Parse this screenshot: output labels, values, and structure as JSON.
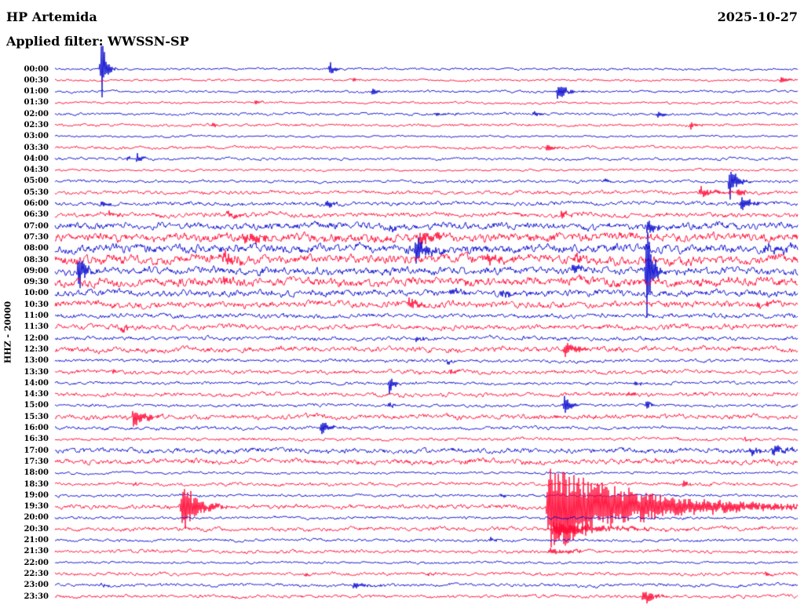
{
  "header": {
    "station": "HP Artemida",
    "date": "2025-10-27",
    "filter_label": "Applied filter: WWSSN-SP"
  },
  "axis": {
    "left_label": "HHZ - 20000"
  },
  "chart_data": {
    "type": "helicorder",
    "title": "HP Artemida 2025-10-27 HHZ helicorder",
    "station": "HP Artemida",
    "channel": "HHZ",
    "scale": 20000,
    "date": "2025-10-27",
    "filter": "WWSSN-SP",
    "minutes_per_row": 30,
    "colors": {
      "blue": "#0000cd",
      "red": "#ff0030"
    },
    "rows": [
      {
        "label": "00:00",
        "color": "blue",
        "noise": 1.0,
        "events": [
          {
            "x": 0.063,
            "amp": 52,
            "decay": 5
          },
          {
            "x": 0.37,
            "amp": 9,
            "decay": 6
          }
        ]
      },
      {
        "label": "00:30",
        "color": "red",
        "noise": 1.0,
        "events": [
          {
            "x": 0.402,
            "amp": 3,
            "decay": 5
          },
          {
            "x": 0.978,
            "amp": 5,
            "decay": 8
          }
        ]
      },
      {
        "label": "01:00",
        "color": "blue",
        "noise": 1.1,
        "events": [
          {
            "x": 0.428,
            "amp": 5,
            "decay": 6
          },
          {
            "x": 0.677,
            "amp": 13,
            "decay": 10
          }
        ]
      },
      {
        "label": "01:30",
        "color": "red",
        "noise": 1.0,
        "events": [
          {
            "x": 0.27,
            "amp": 4,
            "decay": 5
          }
        ]
      },
      {
        "label": "02:00",
        "color": "blue",
        "noise": 1.2,
        "events": [
          {
            "x": 0.513,
            "amp": 3,
            "decay": 14
          },
          {
            "x": 0.645,
            "amp": 4,
            "decay": 6
          },
          {
            "x": 0.812,
            "amp": 5,
            "decay": 6
          }
        ]
      },
      {
        "label": "02:30",
        "color": "red",
        "noise": 1.2,
        "events": [
          {
            "x": 0.211,
            "amp": 4,
            "decay": 6
          },
          {
            "x": 0.856,
            "amp": 5,
            "decay": 7
          }
        ]
      },
      {
        "label": "03:00",
        "color": "blue",
        "noise": 0.9,
        "events": []
      },
      {
        "label": "03:30",
        "color": "red",
        "noise": 1.3,
        "events": [
          {
            "x": 0.663,
            "amp": 7,
            "decay": 8
          }
        ]
      },
      {
        "label": "04:00",
        "color": "blue",
        "noise": 1.2,
        "events": [
          {
            "x": 0.098,
            "amp": 4,
            "decay": 4
          },
          {
            "x": 0.111,
            "amp": 8,
            "decay": 5
          }
        ]
      },
      {
        "label": "04:30",
        "color": "red",
        "noise": 1.0,
        "events": []
      },
      {
        "label": "05:00",
        "color": "blue",
        "noise": 1.3,
        "events": [
          {
            "x": 0.74,
            "amp": 3,
            "decay": 8
          },
          {
            "x": 0.909,
            "amp": 28,
            "decay": 7
          }
        ]
      },
      {
        "label": "05:30",
        "color": "red",
        "noise": 1.6,
        "events": [
          {
            "x": 0.869,
            "amp": 7,
            "decay": 18
          },
          {
            "x": 0.92,
            "amp": 6,
            "decay": 10
          }
        ]
      },
      {
        "label": "06:00",
        "color": "blue",
        "noise": 1.8,
        "events": [
          {
            "x": 0.063,
            "amp": 4,
            "decay": 8
          },
          {
            "x": 0.365,
            "amp": 6,
            "decay": 10
          },
          {
            "x": 0.925,
            "amp": 11,
            "decay": 10
          }
        ]
      },
      {
        "label": "06:30",
        "color": "red",
        "noise": 2.2,
        "events": [
          {
            "x": 0.074,
            "amp": 5,
            "decay": 8
          },
          {
            "x": 0.233,
            "amp": 4,
            "decay": 16
          },
          {
            "x": 0.682,
            "amp": 6,
            "decay": 8
          }
        ]
      },
      {
        "label": "07:00",
        "color": "blue",
        "noise": 3.2,
        "events": [
          {
            "x": 0.452,
            "amp": 6,
            "decay": 8
          },
          {
            "x": 0.798,
            "amp": 10,
            "decay": 8
          }
        ]
      },
      {
        "label": "07:30",
        "color": "red",
        "noise": 4.0,
        "events": [
          {
            "x": 0.254,
            "amp": 8,
            "decay": 20
          },
          {
            "x": 0.492,
            "amp": 12,
            "decay": 18
          }
        ]
      },
      {
        "label": "08:00",
        "color": "blue",
        "noise": 3.8,
        "events": [
          {
            "x": 0.486,
            "amp": 22,
            "decay": 12
          },
          {
            "x": 0.957,
            "amp": 6,
            "decay": 24
          }
        ]
      },
      {
        "label": "08:30",
        "color": "red",
        "noise": 4.2,
        "events": [
          {
            "x": 0.227,
            "amp": 8,
            "decay": 13
          },
          {
            "x": 0.582,
            "amp": 6,
            "decay": 16
          },
          {
            "x": 0.698,
            "amp": 6,
            "decay": 10
          }
        ]
      },
      {
        "label": "09:00",
        "color": "blue",
        "noise": 3.5,
        "events": [
          {
            "x": 0.032,
            "amp": 26,
            "decay": 7
          },
          {
            "x": 0.698,
            "amp": 8,
            "decay": 8
          },
          {
            "x": 0.797,
            "amp": 78,
            "decay": 6
          }
        ]
      },
      {
        "label": "09:30",
        "color": "red",
        "noise": 4.0,
        "events": [
          {
            "x": 0.227,
            "amp": 6,
            "decay": 10
          }
        ]
      },
      {
        "label": "10:00",
        "color": "blue",
        "noise": 3.0,
        "events": [
          {
            "x": 0.534,
            "amp": 5,
            "decay": 8
          },
          {
            "x": 0.602,
            "amp": 6,
            "decay": 12
          }
        ]
      },
      {
        "label": "10:30",
        "color": "red",
        "noise": 3.0,
        "events": [
          {
            "x": 0.476,
            "amp": 7,
            "decay": 15
          },
          {
            "x": 0.946,
            "amp": 4,
            "decay": 16
          }
        ]
      },
      {
        "label": "11:00",
        "color": "blue",
        "noise": 2.0,
        "events": [
          {
            "x": 0.307,
            "amp": 3,
            "decay": 6
          }
        ]
      },
      {
        "label": "11:30",
        "color": "red",
        "noise": 2.4,
        "events": [
          {
            "x": 0.09,
            "amp": 5,
            "decay": 7
          }
        ]
      },
      {
        "label": "12:00",
        "color": "blue",
        "noise": 1.8,
        "events": [
          {
            "x": 0.486,
            "amp": 5,
            "decay": 8
          }
        ]
      },
      {
        "label": "12:30",
        "color": "red",
        "noise": 2.4,
        "events": [
          {
            "x": 0.687,
            "amp": 9,
            "decay": 15
          }
        ]
      },
      {
        "label": "13:00",
        "color": "blue",
        "noise": 1.5,
        "events": [
          {
            "x": 0.529,
            "amp": 4,
            "decay": 6
          }
        ]
      },
      {
        "label": "13:30",
        "color": "red",
        "noise": 1.8,
        "events": [
          {
            "x": 0.079,
            "amp": 4,
            "decay": 6
          },
          {
            "x": 0.534,
            "amp": 4,
            "decay": 8
          }
        ]
      },
      {
        "label": "14:00",
        "color": "blue",
        "noise": 1.4,
        "events": [
          {
            "x": 0.451,
            "amp": 16,
            "decay": 5
          },
          {
            "x": 0.782,
            "amp": 4,
            "decay": 5
          }
        ]
      },
      {
        "label": "14:30",
        "color": "red",
        "noise": 1.8,
        "events": [
          {
            "x": 0.772,
            "amp": 4,
            "decay": 8
          }
        ]
      },
      {
        "label": "15:00",
        "color": "blue",
        "noise": 1.4,
        "events": [
          {
            "x": 0.451,
            "amp": 5,
            "decay": 5
          },
          {
            "x": 0.686,
            "amp": 12,
            "decay": 7
          },
          {
            "x": 0.796,
            "amp": 8,
            "decay": 5
          }
        ]
      },
      {
        "label": "15:30",
        "color": "red",
        "noise": 2.2,
        "events": [
          {
            "x": 0.106,
            "amp": 11,
            "decay": 16
          }
        ]
      },
      {
        "label": "16:00",
        "color": "blue",
        "noise": 1.5,
        "events": [
          {
            "x": 0.359,
            "amp": 9,
            "decay": 10
          }
        ]
      },
      {
        "label": "16:30",
        "color": "red",
        "noise": 1.4,
        "events": [
          {
            "x": 0.93,
            "amp": 3,
            "decay": 8
          }
        ]
      },
      {
        "label": "17:00",
        "color": "blue",
        "noise": 2.4,
        "events": [
          {
            "x": 0.936,
            "amp": 6,
            "decay": 10
          },
          {
            "x": 0.967,
            "amp": 7,
            "decay": 20
          }
        ]
      },
      {
        "label": "17:30",
        "color": "red",
        "noise": 2.4,
        "events": []
      },
      {
        "label": "18:00",
        "color": "blue",
        "noise": 1.1,
        "events": []
      },
      {
        "label": "18:30",
        "color": "red",
        "noise": 1.5,
        "events": [
          {
            "x": 0.106,
            "amp": 3,
            "decay": 6
          },
          {
            "x": 0.846,
            "amp": 5,
            "decay": 6
          }
        ]
      },
      {
        "label": "19:00",
        "color": "blue",
        "noise": 1.3,
        "events": [
          {
            "x": 0.602,
            "amp": 3,
            "decay": 6
          }
        ]
      },
      {
        "label": "19:30",
        "color": "red",
        "noise": 2.0,
        "events": [
          {
            "x": 0.171,
            "amp": 42,
            "decay": 16
          },
          {
            "x": 0.664,
            "amp": 58,
            "decay": 110
          }
        ]
      },
      {
        "label": "20:00",
        "color": "blue",
        "noise": 1.3,
        "events": []
      },
      {
        "label": "20:30",
        "color": "red",
        "noise": 1.8,
        "events": [
          {
            "x": 0.671,
            "amp": 10,
            "decay": 55
          }
        ]
      },
      {
        "label": "21:00",
        "color": "blue",
        "noise": 1.3,
        "events": [
          {
            "x": 0.587,
            "amp": 5,
            "decay": 6
          }
        ]
      },
      {
        "label": "21:30",
        "color": "red",
        "noise": 1.5,
        "events": [
          {
            "x": 0.666,
            "amp": 5,
            "decay": 25
          }
        ]
      },
      {
        "label": "22:00",
        "color": "blue",
        "noise": 1.1,
        "events": []
      },
      {
        "label": "22:30",
        "color": "red",
        "noise": 1.5,
        "events": [
          {
            "x": 0.338,
            "amp": 3,
            "decay": 6
          },
          {
            "x": 0.502,
            "amp": 3,
            "decay": 6
          },
          {
            "x": 0.957,
            "amp": 3,
            "decay": 8
          }
        ]
      },
      {
        "label": "23:00",
        "color": "blue",
        "noise": 1.4,
        "events": [
          {
            "x": 0.063,
            "amp": 3,
            "decay": 6
          },
          {
            "x": 0.402,
            "amp": 4,
            "decay": 20
          }
        ]
      },
      {
        "label": "23:30",
        "color": "red",
        "noise": 1.5,
        "events": [
          {
            "x": 0.793,
            "amp": 13,
            "decay": 9
          }
        ]
      }
    ]
  }
}
